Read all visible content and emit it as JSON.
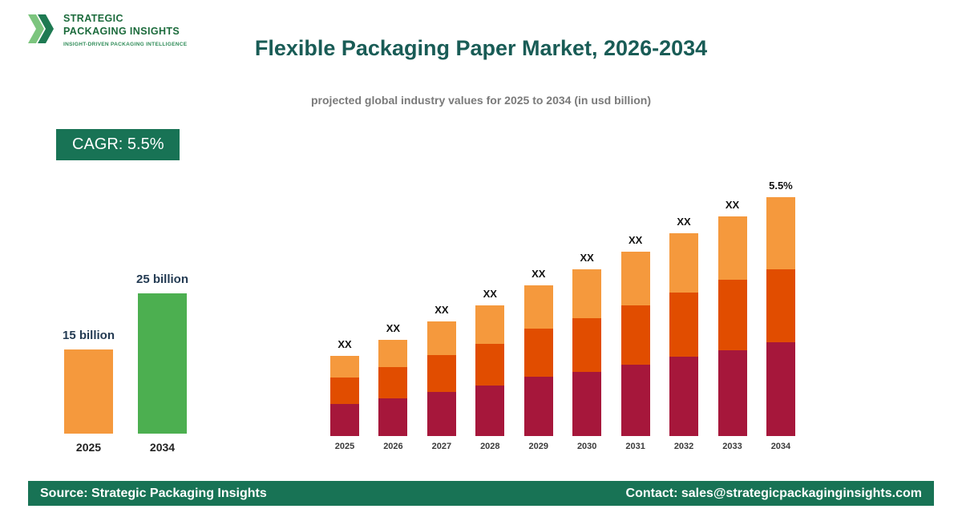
{
  "logo": {
    "line1": "STRATEGIC",
    "line2": "PACKAGING INSIGHTS",
    "tagline": "INSIGHT-DRIVEN PACKAGING INTELLIGENCE"
  },
  "header": {
    "title": "Flexible Packaging Paper Market, 2026-2034",
    "subtitle": "projected global industry values for 2025 to 2034 (in usd billion)"
  },
  "cagr_badge": {
    "label": "CAGR: 5.5%"
  },
  "colors": {
    "accent_green_dark": "#187355",
    "title_teal": "#195C56",
    "bar_crimson": "#A6173B",
    "bar_orange_red": "#E14D00",
    "bar_light_orange": "#F5993D",
    "bar_green": "#4CAF50"
  },
  "mini_chart": {
    "bars": [
      {
        "year": "2025",
        "label": "15 billion",
        "value": 15,
        "color": "#F5993D"
      },
      {
        "year": "2034",
        "label": "25 billion",
        "value": 25,
        "color": "#4CAF50"
      }
    ]
  },
  "chart_data": {
    "type": "bar",
    "stacked": true,
    "title": "Flexible Packaging Paper Market, 2026-2034",
    "xlabel": "",
    "ylabel": "",
    "legend": "none",
    "grid": false,
    "categories": [
      "2025",
      "2026",
      "2027",
      "2028",
      "2029",
      "2030",
      "2031",
      "2032",
      "2033",
      "2034"
    ],
    "bar_labels": [
      "XX",
      "XX",
      "XX",
      "XX",
      "XX",
      "XX",
      "XX",
      "XX",
      "XX",
      "5.5%"
    ],
    "note": "numeric values masked as XX placeholders in source image; series values are relative heights",
    "series": [
      {
        "name": "bottom",
        "color": "#A6173B",
        "values": [
          40,
          47,
          55,
          63,
          74,
          80,
          89,
          99,
          107,
          117
        ]
      },
      {
        "name": "middle",
        "color": "#E14D00",
        "values": [
          33,
          39,
          46,
          52,
          60,
          67,
          74,
          80,
          88,
          91
        ]
      },
      {
        "name": "top",
        "color": "#F5993D",
        "values": [
          27,
          34,
          42,
          48,
          54,
          61,
          67,
          74,
          79,
          90
        ]
      }
    ]
  },
  "footer": {
    "source": "Source: Strategic Packaging Insights",
    "contact": "Contact: sales@strategicpackaginginsights.com"
  }
}
